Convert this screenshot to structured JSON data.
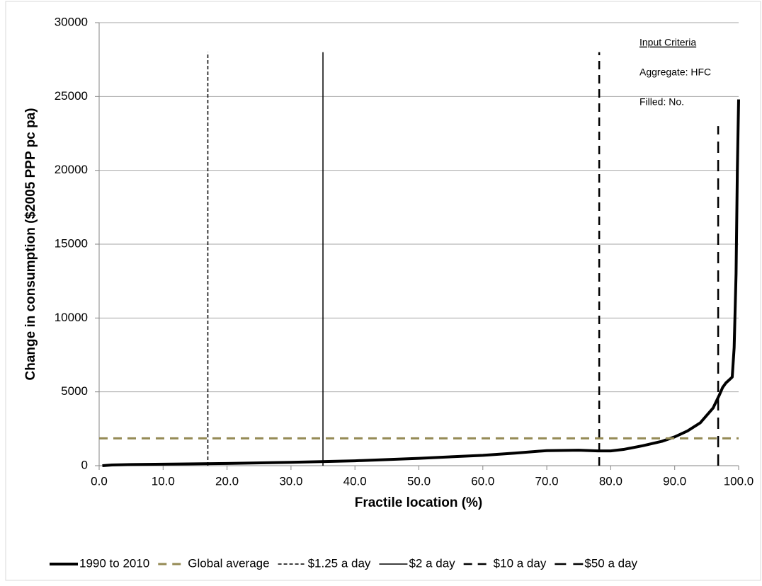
{
  "chart_data": {
    "type": "line",
    "xlabel": "Fractile location (%)",
    "ylabel": "Change in  consumption ($2005 PPP pc pa)",
    "annotations": [
      "Input Criteria",
      "Aggregate: HFC",
      "Filled: No."
    ],
    "xlim": [
      0,
      100
    ],
    "ylim": [
      0,
      30000
    ],
    "xticks": [
      {
        "value": 0,
        "label": "0.0"
      },
      {
        "value": 10,
        "label": "10.0"
      },
      {
        "value": 20,
        "label": "20.0"
      },
      {
        "value": 30,
        "label": "30.0"
      },
      {
        "value": 40,
        "label": "40.0"
      },
      {
        "value": 50,
        "label": "50.0"
      },
      {
        "value": 60,
        "label": "60.0"
      },
      {
        "value": 70,
        "label": "70.0"
      },
      {
        "value": 80,
        "label": "80.0"
      },
      {
        "value": 90,
        "label": "90.0"
      },
      {
        "value": 100,
        "label": "100.0"
      }
    ],
    "yticks": [
      0,
      5000,
      10000,
      15000,
      20000,
      25000,
      30000
    ],
    "grid": true,
    "legend": "bottom",
    "series": [
      {
        "name": "1990 to 2010",
        "color": "#000000",
        "dash": "solid",
        "width": 4,
        "x": [
          0.5,
          2,
          5,
          10,
          20,
          30,
          40,
          50,
          60,
          65,
          70,
          75,
          78,
          80,
          82,
          85,
          88,
          90,
          92,
          94,
          96,
          97,
          97.5,
          98,
          98.5,
          99,
          99.3,
          99.6,
          99.8,
          100
        ],
        "values": [
          0,
          50,
          80,
          100,
          150,
          230,
          330,
          500,
          700,
          850,
          1020,
          1050,
          1000,
          1000,
          1100,
          1350,
          1650,
          1950,
          2350,
          2900,
          3900,
          4800,
          5300,
          5600,
          5800,
          6000,
          8000,
          13000,
          20000,
          24800
        ]
      },
      {
        "name": "Global average",
        "color": "#948a54",
        "dash": "dash",
        "width": 3,
        "x": [
          0,
          100
        ],
        "values": [
          1850,
          1850
        ]
      },
      {
        "name": "$1.25 a day",
        "color": "#000000",
        "dash": "dotted-dash",
        "width": 1.5,
        "x": [
          17,
          17
        ],
        "values": [
          0,
          28000
        ]
      },
      {
        "name": "$2 a day",
        "color": "#000000",
        "dash": "solid",
        "width": 1.5,
        "x": [
          35,
          35
        ],
        "values": [
          0,
          28000
        ]
      },
      {
        "name": "$10 a day",
        "color": "#000000",
        "dash": "dash",
        "width": 2.5,
        "x": [
          78.2,
          78.2
        ],
        "values": [
          0,
          28000
        ]
      },
      {
        "name": "$50 a day",
        "color": "#000000",
        "dash": "long-dash",
        "width": 2.5,
        "x": [
          96.8,
          96.8
        ],
        "values": [
          0,
          23000
        ]
      }
    ]
  }
}
